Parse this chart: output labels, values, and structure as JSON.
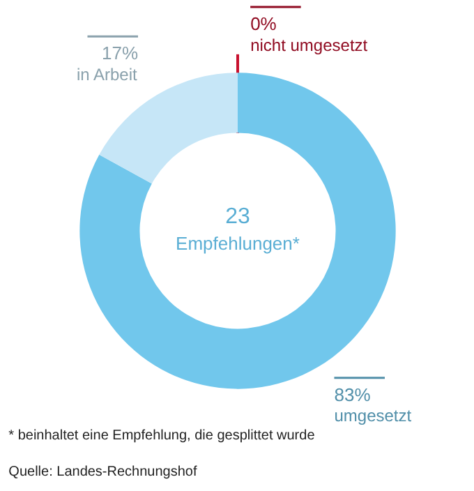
{
  "chart_data": {
    "type": "donut",
    "categories": [
      "nicht umgesetzt",
      "umgesetzt",
      "in Arbeit"
    ],
    "values": [
      0,
      83,
      17
    ],
    "colors": [
      "#c8102e",
      "#71c7ec",
      "#c6e6f7"
    ],
    "value_labels": [
      "0%",
      "83%",
      "17%"
    ],
    "annotations": [
      "23",
      "Empfehlungen*",
      "*   beinhaltet eine Empfehlung, die gesplittet wurde",
      "Quelle: Landes-Rechnungshof"
    ]
  }
}
